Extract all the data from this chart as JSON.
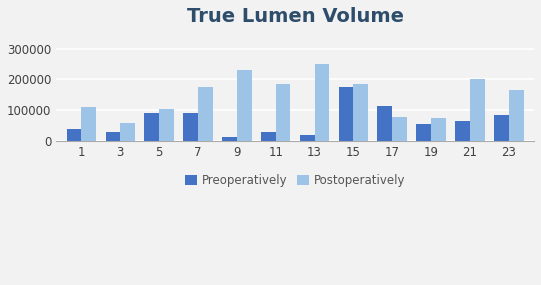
{
  "title": "True Lumen Volume",
  "title_fontsize": 14,
  "title_fontweight": "bold",
  "title_color": "#2E4D6B",
  "x_labels": [
    "1",
    "3",
    "5",
    "7",
    "9",
    "11",
    "13",
    "15",
    "17",
    "19",
    "21",
    "23"
  ],
  "preoperative": [
    40000,
    30000,
    90000,
    90000,
    15000,
    30000,
    20000,
    175000,
    115000,
    55000,
    65000,
    85000
  ],
  "postoperative": [
    110000,
    60000,
    105000,
    175000,
    230000,
    185000,
    250000,
    185000,
    80000,
    75000,
    200000,
    165000
  ],
  "pre_color": "#4472C4",
  "post_color": "#9DC3E6",
  "ylim": [
    0,
    350000
  ],
  "yticks": [
    0,
    100000,
    200000,
    300000
  ],
  "background_color": "#F2F2F2",
  "legend_pre": "Preoperatively",
  "legend_post": "Postoperatively",
  "bar_width": 0.38,
  "grid_color": "#FFFFFF"
}
